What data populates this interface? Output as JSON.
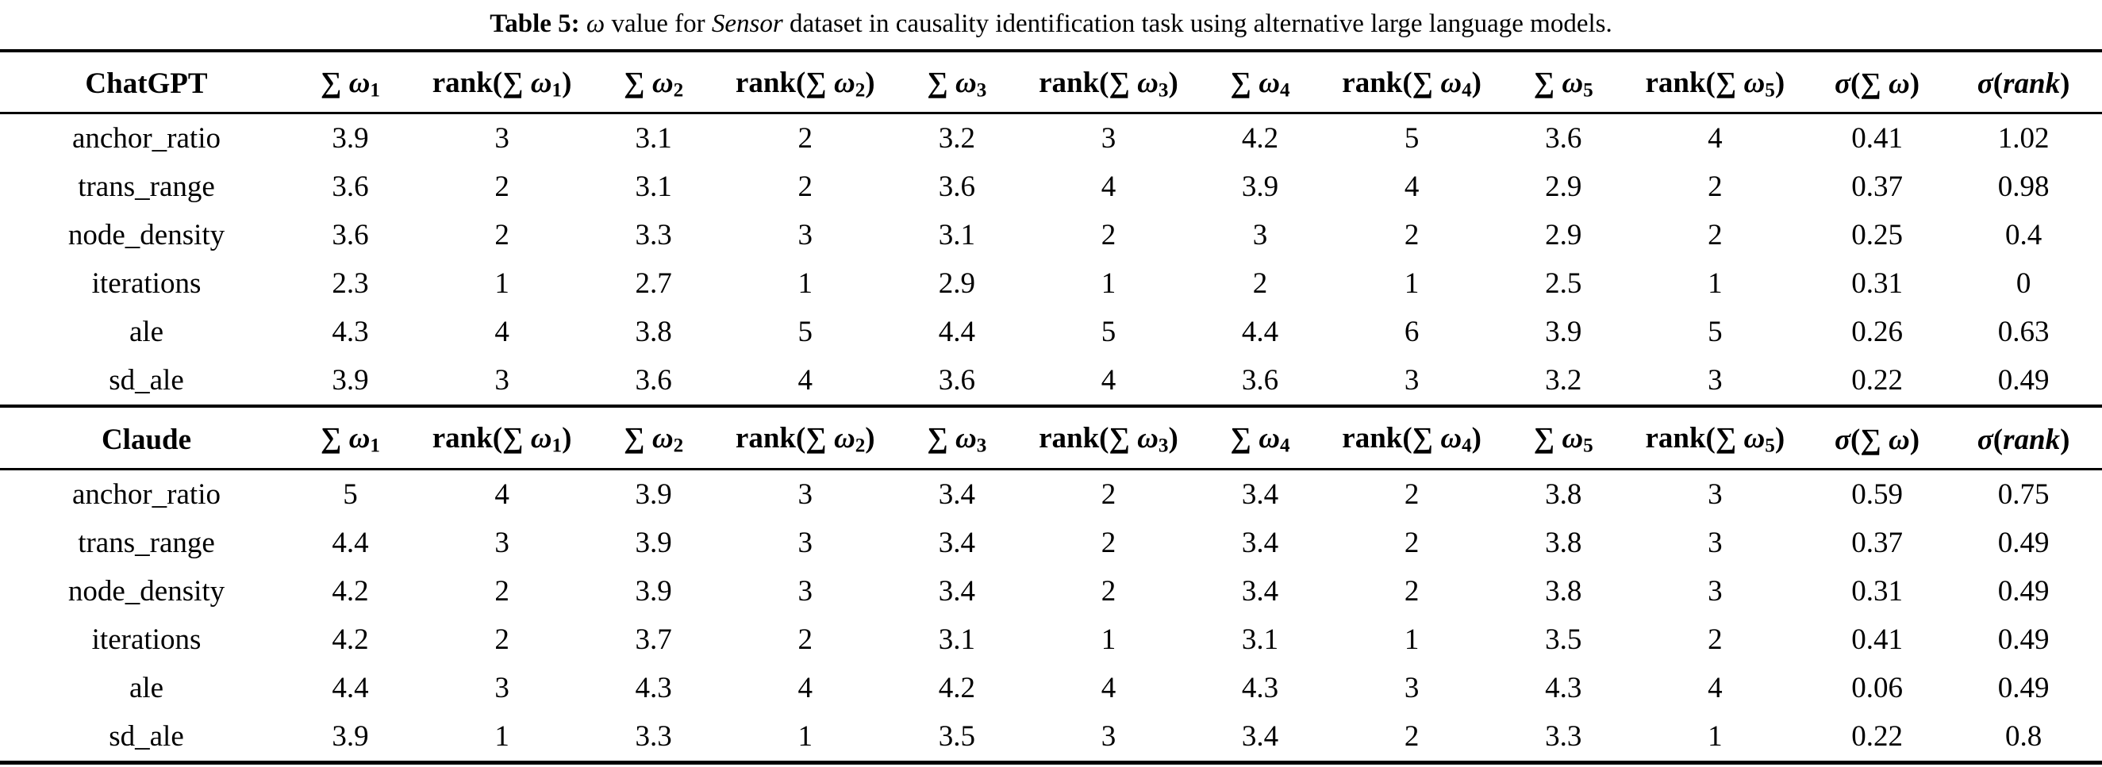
{
  "caption": {
    "segments": [
      {
        "t": "Table 5: ",
        "style": "bold"
      },
      {
        "t": "ω",
        "style": "italic"
      },
      {
        "t": " value for ",
        "style": ""
      },
      {
        "t": "Sensor",
        "style": "italic"
      },
      {
        "t": " dataset in causality identification task using alternative large language models.",
        "style": ""
      }
    ]
  },
  "columns": [
    {
      "name": "sum-omega-1",
      "parts": [
        {
          "t": "∑ "
        },
        {
          "t": "ω",
          "s": "mi"
        },
        {
          "t": "1",
          "s": "sub"
        }
      ]
    },
    {
      "name": "rank-sum-omega-1",
      "parts": [
        {
          "t": "rank(∑ "
        },
        {
          "t": "ω",
          "s": "mi"
        },
        {
          "t": "1",
          "s": "sub"
        },
        {
          "t": ")"
        }
      ]
    },
    {
      "name": "sum-omega-2",
      "parts": [
        {
          "t": "∑ "
        },
        {
          "t": "ω",
          "s": "mi"
        },
        {
          "t": "2",
          "s": "sub"
        }
      ]
    },
    {
      "name": "rank-sum-omega-2",
      "parts": [
        {
          "t": "rank(∑ "
        },
        {
          "t": "ω",
          "s": "mi"
        },
        {
          "t": "2",
          "s": "sub"
        },
        {
          "t": ")"
        }
      ]
    },
    {
      "name": "sum-omega-3",
      "parts": [
        {
          "t": "∑ "
        },
        {
          "t": "ω",
          "s": "mi"
        },
        {
          "t": "3",
          "s": "sub"
        }
      ]
    },
    {
      "name": "rank-sum-omega-3",
      "parts": [
        {
          "t": "rank(∑ "
        },
        {
          "t": "ω",
          "s": "mi"
        },
        {
          "t": "3",
          "s": "sub"
        },
        {
          "t": ")"
        }
      ]
    },
    {
      "name": "sum-omega-4",
      "parts": [
        {
          "t": "∑ "
        },
        {
          "t": "ω",
          "s": "mi"
        },
        {
          "t": "4",
          "s": "sub"
        }
      ]
    },
    {
      "name": "rank-sum-omega-4",
      "parts": [
        {
          "t": "rank(∑ "
        },
        {
          "t": "ω",
          "s": "mi"
        },
        {
          "t": "4",
          "s": "sub"
        },
        {
          "t": ")"
        }
      ]
    },
    {
      "name": "sum-omega-5",
      "parts": [
        {
          "t": "∑ "
        },
        {
          "t": "ω",
          "s": "mi"
        },
        {
          "t": "5",
          "s": "sub"
        }
      ]
    },
    {
      "name": "rank-sum-omega-5",
      "parts": [
        {
          "t": "rank(∑ "
        },
        {
          "t": "ω",
          "s": "mi"
        },
        {
          "t": "5",
          "s": "sub"
        },
        {
          "t": ")"
        }
      ]
    },
    {
      "name": "sigma-sum-omega",
      "parts": [
        {
          "t": "σ",
          "s": "mi"
        },
        {
          "t": "(∑ "
        },
        {
          "t": "ω",
          "s": "mi"
        },
        {
          "t": ")"
        }
      ]
    },
    {
      "name": "sigma-rank",
      "parts": [
        {
          "t": "σ",
          "s": "mi"
        },
        {
          "t": "("
        },
        {
          "t": "rank",
          "s": "mi"
        },
        {
          "t": ")"
        }
      ]
    }
  ],
  "tables": [
    {
      "model": "ChatGPT",
      "rows": [
        {
          "label": "anchor_ratio",
          "values": [
            "3.9",
            "3",
            "3.1",
            "2",
            "3.2",
            "3",
            "4.2",
            "5",
            "3.6",
            "4",
            "0.41",
            "1.02"
          ]
        },
        {
          "label": "trans_range",
          "values": [
            "3.6",
            "2",
            "3.1",
            "2",
            "3.6",
            "4",
            "3.9",
            "4",
            "2.9",
            "2",
            "0.37",
            "0.98"
          ]
        },
        {
          "label": "node_density",
          "values": [
            "3.6",
            "2",
            "3.3",
            "3",
            "3.1",
            "2",
            "3",
            "2",
            "2.9",
            "2",
            "0.25",
            "0.4"
          ]
        },
        {
          "label": "iterations",
          "values": [
            "2.3",
            "1",
            "2.7",
            "1",
            "2.9",
            "1",
            "2",
            "1",
            "2.5",
            "1",
            "0.31",
            "0"
          ]
        },
        {
          "label": "ale",
          "values": [
            "4.3",
            "4",
            "3.8",
            "5",
            "4.4",
            "5",
            "4.4",
            "6",
            "3.9",
            "5",
            "0.26",
            "0.63"
          ]
        },
        {
          "label": "sd_ale",
          "values": [
            "3.9",
            "3",
            "3.6",
            "4",
            "3.6",
            "4",
            "3.6",
            "3",
            "3.2",
            "3",
            "0.22",
            "0.49"
          ]
        }
      ]
    },
    {
      "model": "Claude",
      "rows": [
        {
          "label": "anchor_ratio",
          "values": [
            "5",
            "4",
            "3.9",
            "3",
            "3.4",
            "2",
            "3.4",
            "2",
            "3.8",
            "3",
            "0.59",
            "0.75"
          ]
        },
        {
          "label": "trans_range",
          "values": [
            "4.4",
            "3",
            "3.9",
            "3",
            "3.4",
            "2",
            "3.4",
            "2",
            "3.8",
            "3",
            "0.37",
            "0.49"
          ]
        },
        {
          "label": "node_density",
          "values": [
            "4.2",
            "2",
            "3.9",
            "3",
            "3.4",
            "2",
            "3.4",
            "2",
            "3.8",
            "3",
            "0.31",
            "0.49"
          ]
        },
        {
          "label": "iterations",
          "values": [
            "4.2",
            "2",
            "3.7",
            "2",
            "3.1",
            "1",
            "3.1",
            "1",
            "3.5",
            "2",
            "0.41",
            "0.49"
          ]
        },
        {
          "label": "ale",
          "values": [
            "4.4",
            "3",
            "4.3",
            "4",
            "4.2",
            "4",
            "4.3",
            "3",
            "4.3",
            "4",
            "0.06",
            "0.49"
          ]
        },
        {
          "label": "sd_ale",
          "values": [
            "3.9",
            "1",
            "3.3",
            "1",
            "3.5",
            "3",
            "3.4",
            "2",
            "3.3",
            "1",
            "0.22",
            "0.8"
          ]
        }
      ]
    }
  ],
  "colors": {
    "text": "#000000",
    "background": "#ffffff",
    "rule": "#000000"
  }
}
